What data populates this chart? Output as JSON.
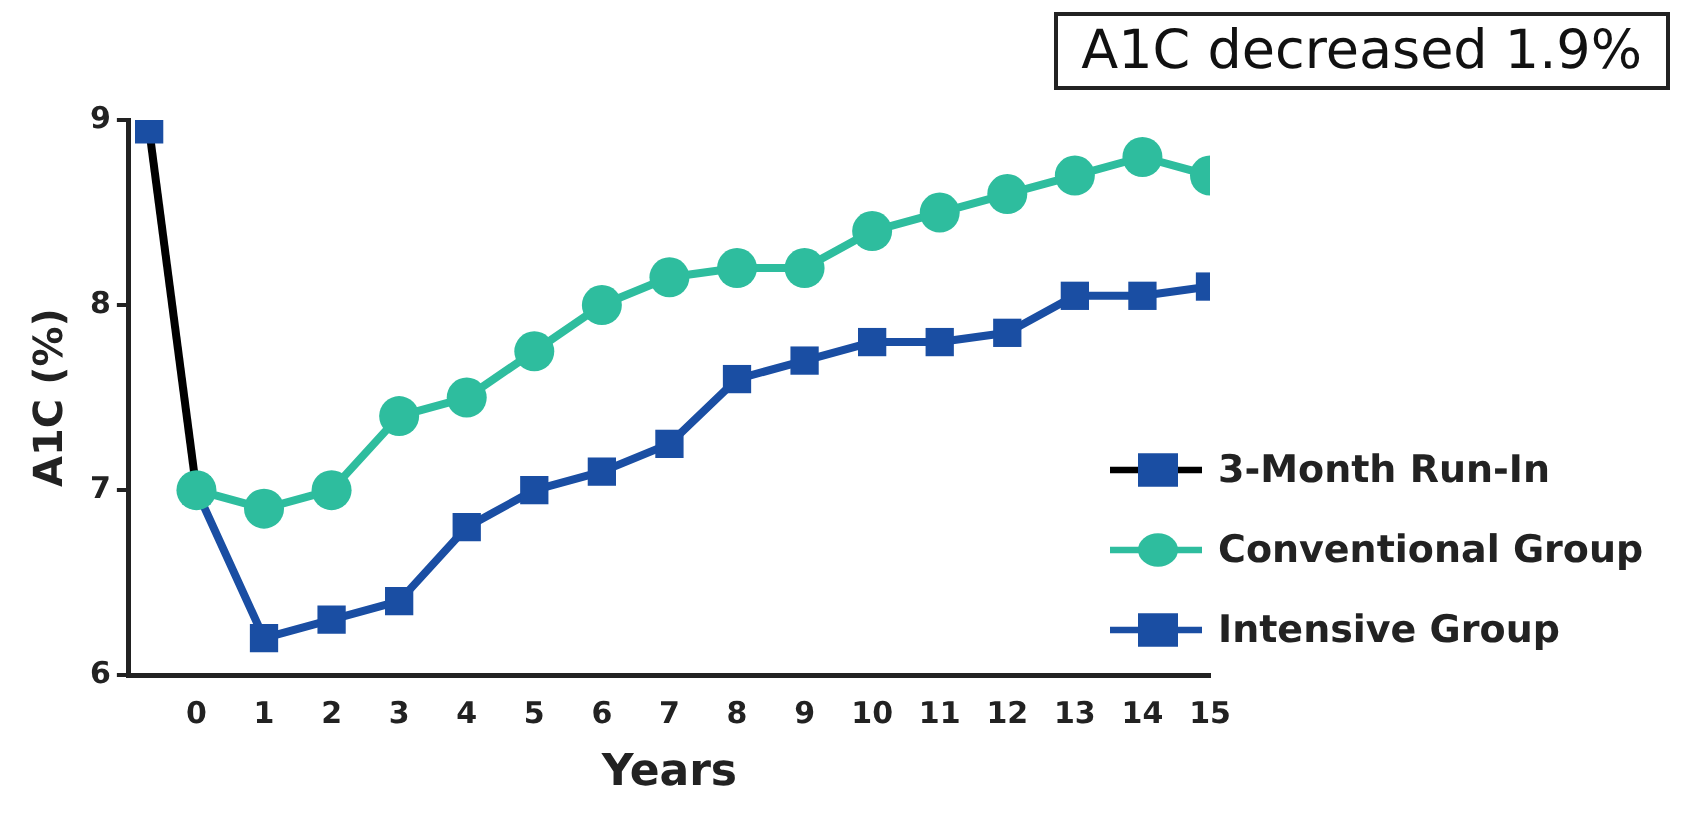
{
  "chart_data": {
    "type": "line",
    "xlabel": "Years",
    "ylabel": "A1C (%)",
    "annotations": [
      "A1C decreased 1.9%"
    ],
    "xlim": [
      -1,
      15
    ],
    "xticks": [
      0,
      1,
      2,
      3,
      4,
      5,
      6,
      7,
      8,
      9,
      10,
      11,
      12,
      13,
      14,
      15
    ],
    "ylim": [
      6,
      9
    ],
    "yticks": [
      6,
      7,
      8,
      9
    ],
    "grid": false,
    "legend": "right",
    "line_style": "solid",
    "series": [
      {
        "name": "3-Month Run-In",
        "color": "#000000",
        "marker": "square",
        "x": [
          -0.7,
          0
        ],
        "values": [
          8.95,
          7.0
        ]
      },
      {
        "name": "Conventional Group",
        "color": "#2ebd9e",
        "marker": "circle",
        "x": [
          0,
          1,
          2,
          3,
          4,
          5,
          6,
          7,
          8,
          9,
          10,
          11,
          12,
          13,
          14,
          15
        ],
        "values": [
          7.0,
          6.9,
          7.0,
          7.4,
          7.5,
          7.75,
          8.0,
          8.15,
          8.2,
          8.2,
          8.4,
          8.5,
          8.6,
          8.7,
          8.8,
          8.7
        ]
      },
      {
        "name": "Intensive Group",
        "color": "#1a4ea3",
        "marker": "square",
        "x": [
          0,
          1,
          2,
          3,
          4,
          5,
          6,
          7,
          8,
          9,
          10,
          11,
          12,
          13,
          14,
          15
        ],
        "values": [
          7.0,
          6.2,
          6.3,
          6.4,
          6.8,
          7.0,
          7.1,
          7.25,
          7.6,
          7.7,
          7.8,
          7.8,
          7.85,
          8.05,
          8.05,
          8.1
        ]
      }
    ]
  }
}
